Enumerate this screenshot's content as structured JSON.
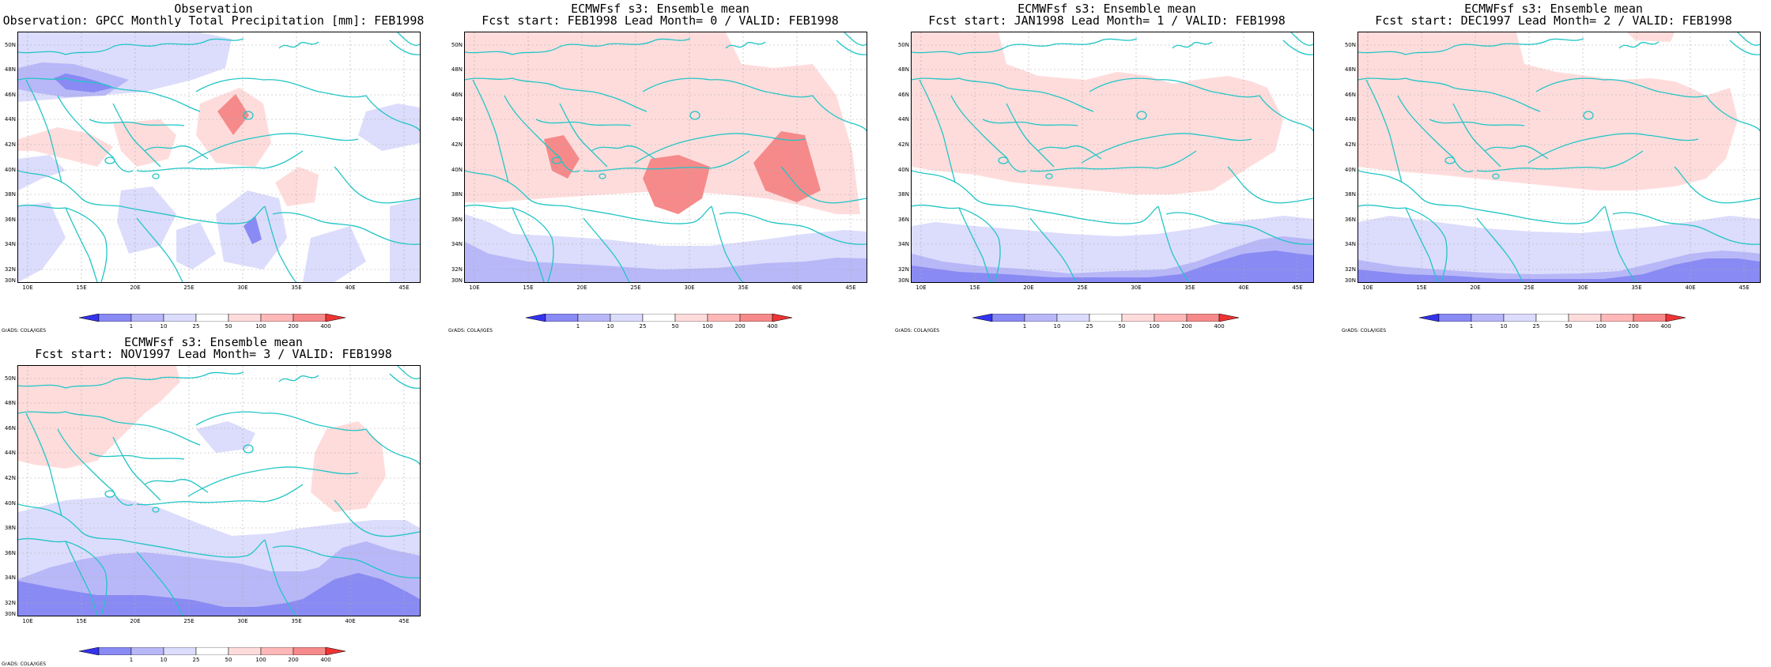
{
  "colors": {
    "coast": "#22c5c5",
    "grid": "#aaaaaa",
    "cbar": [
      "#3333ee",
      "#8a8af4",
      "#b8b8f8",
      "#dcdcfc",
      "#ffffff",
      "#ffdcdc",
      "#ffb8b8",
      "#f68a8a",
      "#ee3333"
    ]
  },
  "axes": {
    "lat_labels": [
      "50N",
      "48N",
      "46N",
      "44N",
      "42N",
      "40N",
      "38N",
      "36N",
      "34N",
      "32N",
      "30N"
    ],
    "lon_labels": [
      "10E",
      "15E",
      "20E",
      "25E",
      "30E",
      "35E",
      "40E",
      "45E"
    ],
    "colorbar_ticks": [
      "1",
      "10",
      "25",
      "50",
      "100",
      "200",
      "400"
    ]
  },
  "credit": "GrADS: COLA/IGES",
  "panels": [
    {
      "line1": "Observation",
      "line2": "Observation: GPCC Monthly Total Precipitation [mm]: FEB1998"
    },
    {
      "line1": "ECMWFsf s3: Ensemble mean",
      "line2": "Fcst start: FEB1998  Lead Month= 0 / VALID: FEB1998"
    },
    {
      "line1": "ECMWFsf s3: Ensemble mean",
      "line2": "Fcst start: JAN1998  Lead Month= 1 / VALID: FEB1998"
    },
    {
      "line1": "ECMWFsf s3: Ensemble mean",
      "line2": "Fcst start: DEC1997  Lead Month= 2 / VALID: FEB1998"
    },
    {
      "line1": "ECMWFsf s3: Ensemble mean",
      "line2": "Fcst start: NOV1997  Lead Month= 3 / VALID: FEB1998"
    }
  ]
}
